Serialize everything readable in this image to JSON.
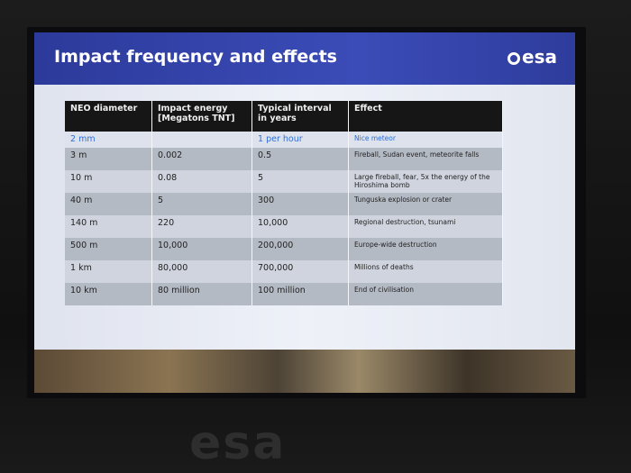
{
  "slide": {
    "title": "Impact frequency and effects",
    "logo": "esa",
    "table": {
      "columns": [
        "NEO diameter",
        "Impact energy [Megatons TNT]",
        "Typical interval in years",
        "Effect"
      ],
      "rows": [
        [
          "2 mm",
          null,
          "1 per hour",
          "Nice meteor"
        ],
        [
          "3 m",
          "0.002",
          "0.5",
          "Fireball, Sudan event, meteorite falls"
        ],
        [
          "10 m",
          "0.08",
          "5",
          "Large fireball, fear, 5x the energy of the Hiroshima bomb"
        ],
        [
          "40 m",
          "5",
          "300",
          "Tunguska explosion or crater"
        ],
        [
          "140 m",
          "220",
          "10,000",
          "Regional destruction, tsunami"
        ],
        [
          "500 m",
          "10,000",
          "200,000",
          "Europe-wide destruction"
        ],
        [
          "1 km",
          "80,000",
          "700,000",
          "Millions of deaths"
        ],
        [
          "10 km",
          "80 million",
          "100 million",
          "End of civilisation"
        ]
      ]
    }
  },
  "stage": {
    "logo": "esa"
  }
}
